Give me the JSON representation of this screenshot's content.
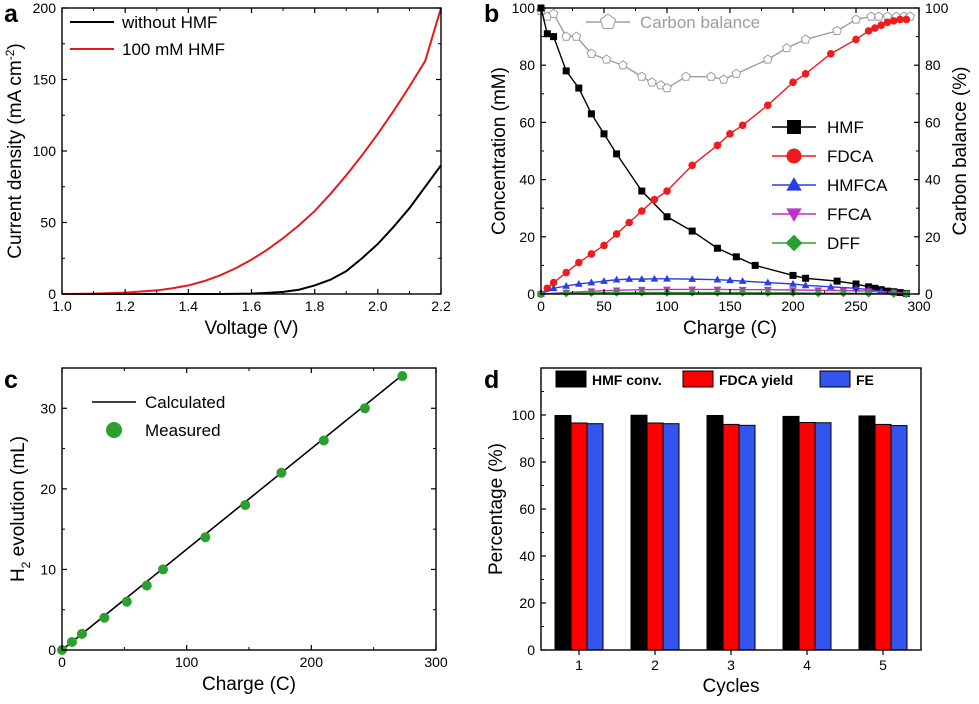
{
  "chart_data": [
    {
      "panel": "a",
      "type": "line",
      "xlabel": "Voltage (V)",
      "ylabel": "Current density (mA cm",
      "ylabel_sup": "-2",
      "ylabel_end": ")",
      "xlim": [
        1.0,
        2.2
      ],
      "ylim": [
        0,
        200
      ],
      "xticks": [
        "1.0",
        "1.2",
        "1.4",
        "1.6",
        "1.8",
        "2.0",
        "2.2"
      ],
      "yticks": [
        "0",
        "50",
        "100",
        "150",
        "200"
      ],
      "series": [
        {
          "name": "without HMF",
          "color": "#000000",
          "x": [
            1.0,
            1.2,
            1.4,
            1.5,
            1.6,
            1.65,
            1.7,
            1.75,
            1.8,
            1.85,
            1.9,
            1.95,
            2.0,
            2.05,
            2.1,
            2.15,
            2.2
          ],
          "y": [
            0,
            0,
            0,
            0,
            0.3,
            0.8,
            1.5,
            3,
            6,
            10,
            16,
            25,
            35,
            47,
            60,
            75,
            90
          ]
        },
        {
          "name": "100 mM HMF",
          "color": "#e31a1c",
          "x": [
            1.0,
            1.1,
            1.2,
            1.3,
            1.35,
            1.4,
            1.45,
            1.5,
            1.55,
            1.6,
            1.65,
            1.7,
            1.75,
            1.8,
            1.85,
            1.9,
            1.95,
            2.0,
            2.05,
            2.1,
            2.15,
            2.2
          ],
          "y": [
            0,
            0.3,
            1,
            2.5,
            4,
            6,
            9,
            13,
            18,
            24,
            31,
            39,
            48,
            58,
            70,
            83,
            97,
            112,
            128,
            145,
            163,
            200
          ]
        }
      ]
    },
    {
      "panel": "b",
      "type": "line",
      "xlabel": "Charge (C)",
      "ylabel": "Concentration (mM)",
      "y2label": "Carbon balance (%)",
      "xlim": [
        0,
        300
      ],
      "ylim": [
        0,
        100
      ],
      "y2lim": [
        0,
        100
      ],
      "xticks": [
        "0",
        "50",
        "100",
        "150",
        "200",
        "250",
        "300"
      ],
      "yticks": [
        "0",
        "20",
        "40",
        "60",
        "80",
        "100"
      ],
      "y2ticks": [
        "0",
        "20",
        "40",
        "60",
        "80",
        "100"
      ],
      "carbon_balance_legend": "Carbon balance",
      "carbon_balance": {
        "x": [
          0,
          5,
          10,
          20,
          28,
          40,
          52,
          65,
          80,
          88,
          95,
          100,
          115,
          135,
          145,
          155,
          180,
          195,
          210,
          235,
          250,
          262,
          268,
          275,
          282,
          288,
          293
        ],
        "y": [
          99,
          97,
          98,
          90,
          90,
          84,
          82,
          80,
          76,
          74,
          73,
          72,
          76,
          76,
          75,
          77,
          82,
          86,
          89,
          92,
          96,
          97,
          97,
          97,
          97,
          97,
          97
        ]
      },
      "series": [
        {
          "name": "HMF",
          "color": "#000000",
          "marker": "square",
          "x": [
            0,
            5,
            10,
            20,
            30,
            40,
            50,
            60,
            80,
            100,
            120,
            140,
            155,
            170,
            200,
            210,
            235,
            250,
            260,
            265,
            270,
            275,
            280,
            285,
            290
          ],
          "y": [
            100,
            91,
            90,
            78,
            72,
            63,
            56,
            49,
            36,
            27,
            22,
            16,
            13,
            10,
            6.5,
            5.5,
            4.5,
            3.5,
            2.5,
            2,
            1.5,
            1,
            0.8,
            0.5,
            0.2
          ]
        },
        {
          "name": "FDCA",
          "color": "#ee1c1c",
          "marker": "circle",
          "x": [
            0,
            5,
            10,
            20,
            30,
            40,
            50,
            60,
            70,
            80,
            90,
            100,
            120,
            140,
            150,
            160,
            180,
            200,
            210,
            230,
            250,
            260,
            265,
            270,
            275,
            280,
            285,
            290
          ],
          "y": [
            0,
            2,
            4,
            7.5,
            11,
            14,
            17,
            21,
            25,
            29,
            33,
            36,
            45,
            52,
            56,
            59,
            66,
            74,
            77,
            84,
            89,
            92,
            93,
            94,
            95,
            95.5,
            96,
            96
          ]
        },
        {
          "name": "HMFCA",
          "color": "#2a3fe0",
          "marker": "triangle-up",
          "x": [
            0,
            10,
            20,
            30,
            40,
            50,
            60,
            70,
            80,
            90,
            100,
            120,
            140,
            150,
            160,
            180,
            200,
            210,
            230,
            250,
            260,
            270,
            280,
            290
          ],
          "y": [
            0,
            2,
            2.8,
            3.5,
            4,
            4.5,
            5,
            5.2,
            5.2,
            5.3,
            5.3,
            5.2,
            5,
            4.8,
            4.5,
            4,
            3.5,
            3,
            2.5,
            2,
            1.5,
            1,
            0.6,
            0.2
          ]
        },
        {
          "name": "FFCA",
          "color": "#c030c8",
          "marker": "triangle-down",
          "x": [
            0,
            20,
            40,
            60,
            80,
            100,
            120,
            140,
            160,
            180,
            200,
            220,
            240,
            260,
            280,
            290
          ],
          "y": [
            0,
            0.5,
            1,
            1.3,
            1.5,
            1.6,
            1.6,
            1.6,
            1.5,
            1.5,
            1.4,
            1.3,
            1.2,
            1,
            0.6,
            0.2
          ]
        },
        {
          "name": "DFF",
          "color": "#2ca02c",
          "marker": "diamond",
          "x": [
            0,
            20,
            40,
            60,
            80,
            100,
            120,
            140,
            160,
            180,
            200,
            220,
            240,
            260,
            280,
            290
          ],
          "y": [
            0,
            0.3,
            0.4,
            0.5,
            0.5,
            0.5,
            0.5,
            0.5,
            0.5,
            0.4,
            0.4,
            0.3,
            0.3,
            0.2,
            0.1,
            0
          ]
        }
      ]
    },
    {
      "panel": "c",
      "type": "line",
      "xlabel": "Charge (C)",
      "ylabel_pre": "H",
      "ylabel_sub": "2",
      "ylabel": " evolution (mL)",
      "xlim": [
        0,
        300
      ],
      "ylim": [
        0,
        35
      ],
      "xticks": [
        "0",
        "100",
        "200",
        "300"
      ],
      "yticks": [
        "0",
        "10",
        "20",
        "30"
      ],
      "calculated": {
        "name": "Calculated",
        "color": "#000000",
        "x": [
          0,
          272
        ],
        "y": [
          0,
          34
        ]
      },
      "measured": {
        "name": "Measured",
        "color": "#2ca02c",
        "x": [
          0,
          8,
          16,
          34,
          52,
          68,
          81,
          115,
          147,
          176,
          210,
          243,
          273
        ],
        "y": [
          0,
          1,
          2,
          4,
          6,
          8,
          10,
          14,
          18,
          22,
          26,
          30,
          34
        ]
      }
    },
    {
      "panel": "d",
      "type": "bar",
      "xlabel": "Cycles",
      "ylabel": "Percentage (%)",
      "ylim": [
        0,
        120
      ],
      "yticks": [
        "0",
        "20",
        "40",
        "60",
        "80",
        "100"
      ],
      "categories": [
        "1",
        "2",
        "3",
        "4",
        "5"
      ],
      "series": [
        {
          "name": "HMF conv.",
          "color": "#000000",
          "values": [
            99.8,
            99.9,
            99.8,
            99.4,
            99.6
          ]
        },
        {
          "name": "FDCA yield",
          "color": "#ff0000",
          "values": [
            96.6,
            96.6,
            96.0,
            96.8,
            96.0
          ]
        },
        {
          "name": "FE",
          "color": "#3355ee",
          "values": [
            96.3,
            96.3,
            95.6,
            96.7,
            95.5
          ]
        }
      ]
    }
  ],
  "panel_labels": {
    "a": "a",
    "b": "b",
    "c": "c",
    "d": "d"
  }
}
